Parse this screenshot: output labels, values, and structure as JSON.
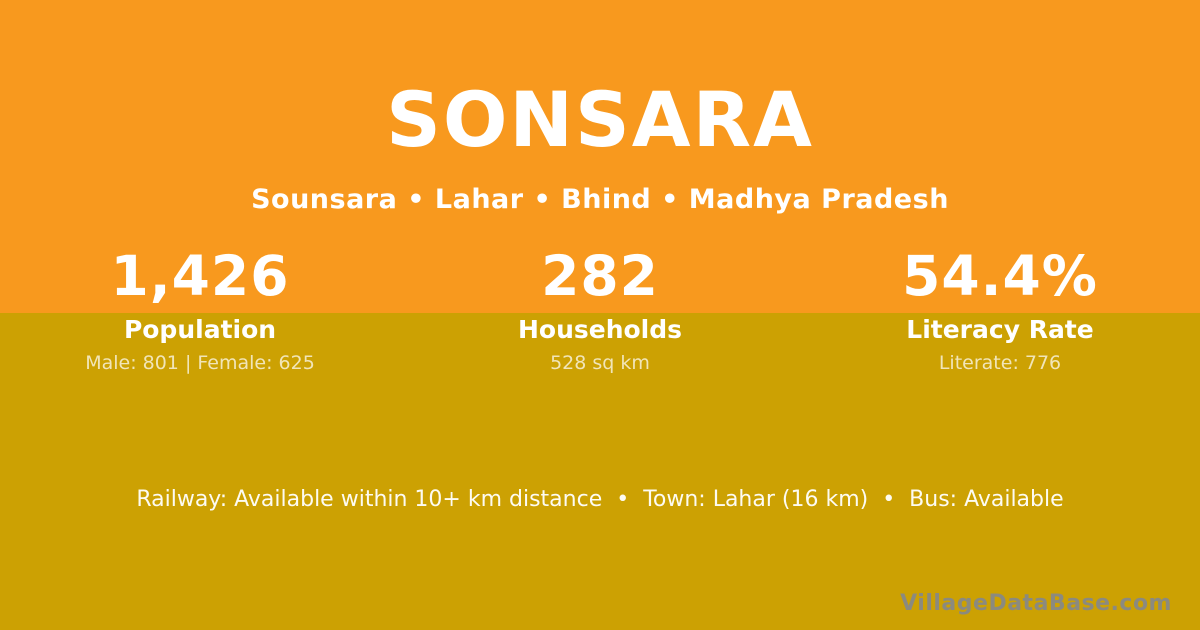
{
  "header": {
    "title": "SONSARA",
    "subtitle": "Sounsara • Lahar • Bhind • Madhya Pradesh"
  },
  "stats": [
    {
      "value": "1,426",
      "label": "Population",
      "detail": "Male: 801 | Female: 625"
    },
    {
      "value": "282",
      "label": "Households",
      "detail": "528 sq km"
    },
    {
      "value": "54.4%",
      "label": "Literacy Rate",
      "detail": "Literate: 776"
    }
  ],
  "footer": {
    "info": "Railway: Available within 10+ km distance  •  Town: Lahar (16 km)  •  Bus: Available",
    "watermark": "VillageDataBase.com"
  },
  "colors": {
    "top_band": "#F8991E",
    "bottom_band": "#CCA103",
    "text_primary": "#FFFFFF",
    "text_muted": "rgba(255,255,255,0.72)",
    "watermark_gray": "#85888D"
  }
}
